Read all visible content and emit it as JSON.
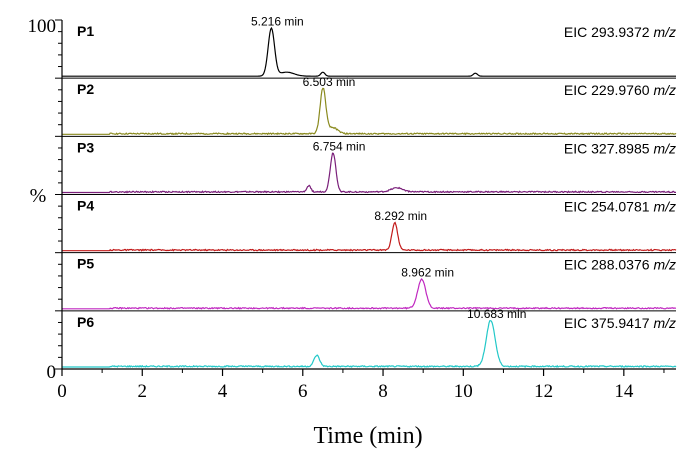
{
  "chart_data": {
    "type": "line",
    "title": "",
    "xlabel": "Time (min)",
    "ylabel": "%",
    "xlim": [
      0,
      15.3
    ],
    "ylim": [
      0,
      100
    ],
    "x_ticks": [
      "0",
      "2",
      "4",
      "6",
      "8",
      "10",
      "12",
      "14"
    ],
    "y_ticks": [
      "0",
      "100"
    ],
    "series": [
      {
        "name": "P1",
        "color": "#000000",
        "eic_prefix": "EIC 293.9372",
        "eic_unit": "m/z",
        "peak_label": "5.216 min",
        "peaks": [
          {
            "x": 5.216,
            "height": 0.95,
            "width": 0.08
          },
          {
            "x": 5.6,
            "height": 0.08,
            "width": 0.18
          },
          {
            "x": 6.5,
            "height": 0.08,
            "width": 0.05
          },
          {
            "x": 10.3,
            "height": 0.06,
            "width": 0.05
          }
        ]
      },
      {
        "name": "P2",
        "color": "#8a8a1e",
        "eic_prefix": "EIC 229.9760",
        "eic_unit": "m/z",
        "peak_label": "6.503 min",
        "peaks": [
          {
            "x": 6.503,
            "height": 0.9,
            "width": 0.07
          },
          {
            "x": 6.75,
            "height": 0.12,
            "width": 0.12
          }
        ]
      },
      {
        "name": "P3",
        "color": "#7a1f7a",
        "eic_prefix": "EIC 327.8985",
        "eic_unit": "m/z",
        "peak_label": "6.754 min",
        "peaks": [
          {
            "x": 6.754,
            "height": 0.78,
            "width": 0.07
          },
          {
            "x": 6.15,
            "height": 0.12,
            "width": 0.05
          },
          {
            "x": 8.35,
            "height": 0.08,
            "width": 0.15
          }
        ]
      },
      {
        "name": "P4",
        "color": "#c21a1a",
        "eic_prefix": "EIC 254.0781",
        "eic_unit": "m/z",
        "peak_label": "8.292 min",
        "peaks": [
          {
            "x": 8.292,
            "height": 0.55,
            "width": 0.07
          }
        ]
      },
      {
        "name": "P5",
        "color": "#c028c0",
        "eic_prefix": "EIC 288.0376",
        "eic_unit": "m/z",
        "peak_label": "8.962 min",
        "peaks": [
          {
            "x": 8.962,
            "height": 0.58,
            "width": 0.1
          }
        ]
      },
      {
        "name": "P6",
        "color": "#22c8c8",
        "eic_prefix": "EIC 375.9417",
        "eic_unit": "m/z",
        "peak_label": "10.683 min",
        "peaks": [
          {
            "x": 10.683,
            "height": 0.92,
            "width": 0.11
          },
          {
            "x": 6.35,
            "height": 0.22,
            "width": 0.07
          }
        ]
      }
    ]
  }
}
